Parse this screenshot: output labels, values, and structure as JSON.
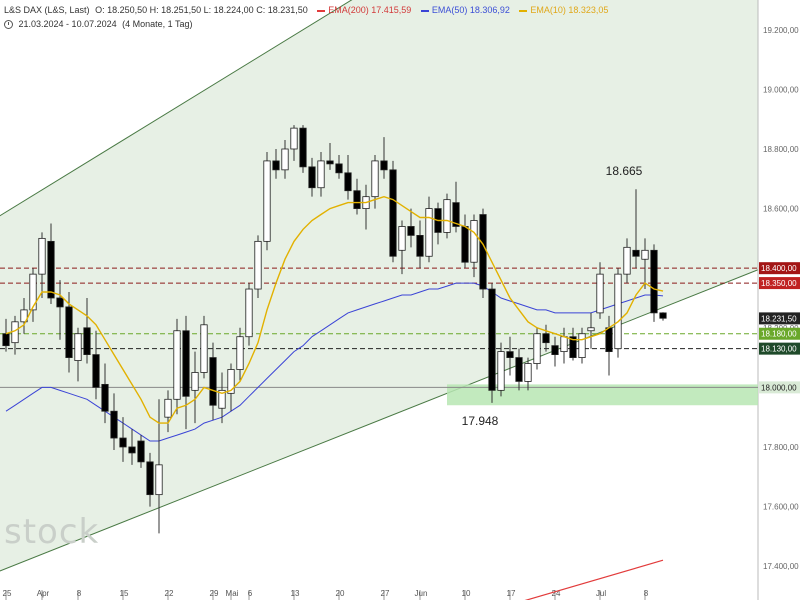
{
  "header": {
    "instrument": "L&S DAX (L&S, Last)",
    "ohlc": "O: 18.250,50  H: 18.251,50  L: 18.224,00  C: 18.231,50",
    "ema200": "EMA(200)  17.415,59",
    "ema50": "EMA(50)  18.306,92",
    "ema10": "EMA(10)  18.323,05",
    "range": "21.03.2024 - 10.07.2024",
    "period": "(4 Monate, 1 Tag)"
  },
  "watermark": "stock",
  "colors": {
    "up": "#ffffff",
    "down": "#000000",
    "ema200": "#e23b3b",
    "ema50": "#3b44d6",
    "ema10": "#e2b100",
    "channel_fill": "#e7f0e5",
    "channel_line": "#4a7a45",
    "support_zone": "#b7e6b3",
    "red_dash": "#8b1a1a",
    "green_dash": "#6aa82a",
    "black_dash": "#222222"
  },
  "chart_data": {
    "type": "candlestick",
    "ylim": [
      17320,
      19300
    ],
    "yticks": [
      "19.200,00",
      "19.000,00",
      "18.800,00",
      "18.600,00",
      "18.400,00",
      "18.200,00",
      "18.000,00",
      "17.800,00",
      "17.600,00",
      "17.400,00"
    ],
    "ytick_values": [
      19200,
      19000,
      18800,
      18600,
      18400,
      18200,
      18000,
      17800,
      17600,
      17400
    ],
    "xticks": [
      {
        "label": "25",
        "i": 0
      },
      {
        "label": "Apr",
        "i": 4
      },
      {
        "label": "8",
        "i": 8
      },
      {
        "label": "15",
        "i": 13
      },
      {
        "label": "22",
        "i": 18
      },
      {
        "label": "29",
        "i": 23
      },
      {
        "label": "Mai",
        "i": 25
      },
      {
        "label": "6",
        "i": 27
      },
      {
        "label": "13",
        "i": 32
      },
      {
        "label": "20",
        "i": 37
      },
      {
        "label": "27",
        "i": 42
      },
      {
        "label": "Jun",
        "i": 46
      },
      {
        "label": "10",
        "i": 51
      },
      {
        "label": "17",
        "i": 56
      },
      {
        "label": "24",
        "i": 61
      },
      {
        "label": "Jul",
        "i": 66
      },
      {
        "label": "8",
        "i": 71
      }
    ],
    "candles": [
      {
        "o": 18180,
        "h": 18230,
        "l": 18120,
        "c": 18140
      },
      {
        "o": 18150,
        "h": 18240,
        "l": 18110,
        "c": 18220
      },
      {
        "o": 18220,
        "h": 18300,
        "l": 18180,
        "c": 18260
      },
      {
        "o": 18260,
        "h": 18400,
        "l": 18220,
        "c": 18380
      },
      {
        "o": 18380,
        "h": 18520,
        "l": 18300,
        "c": 18500
      },
      {
        "o": 18490,
        "h": 18550,
        "l": 18280,
        "c": 18300
      },
      {
        "o": 18300,
        "h": 18360,
        "l": 18160,
        "c": 18270
      },
      {
        "o": 18270,
        "h": 18320,
        "l": 18050,
        "c": 18100
      },
      {
        "o": 18090,
        "h": 18200,
        "l": 18020,
        "c": 18180
      },
      {
        "o": 18200,
        "h": 18300,
        "l": 18080,
        "c": 18110
      },
      {
        "o": 18110,
        "h": 18190,
        "l": 17960,
        "c": 18000
      },
      {
        "o": 18010,
        "h": 18080,
        "l": 17880,
        "c": 17920
      },
      {
        "o": 17920,
        "h": 17980,
        "l": 17790,
        "c": 17830
      },
      {
        "o": 17830,
        "h": 17900,
        "l": 17750,
        "c": 17800
      },
      {
        "o": 17800,
        "h": 17860,
        "l": 17740,
        "c": 17780
      },
      {
        "o": 17820,
        "h": 17840,
        "l": 17730,
        "c": 17750
      },
      {
        "o": 17750,
        "h": 17780,
        "l": 17600,
        "c": 17640
      },
      {
        "o": 17640,
        "h": 17960,
        "l": 17510,
        "c": 17740
      },
      {
        "o": 17900,
        "h": 17990,
        "l": 17850,
        "c": 17960
      },
      {
        "o": 17960,
        "h": 18230,
        "l": 17910,
        "c": 18190
      },
      {
        "o": 18190,
        "h": 18240,
        "l": 17860,
        "c": 17970
      },
      {
        "o": 17990,
        "h": 18120,
        "l": 17880,
        "c": 18050
      },
      {
        "o": 18050,
        "h": 18240,
        "l": 18030,
        "c": 18210
      },
      {
        "o": 18100,
        "h": 18150,
        "l": 17890,
        "c": 17940
      },
      {
        "o": 17930,
        "h": 18050,
        "l": 17880,
        "c": 17990
      },
      {
        "o": 17980,
        "h": 18080,
        "l": 17920,
        "c": 18060
      },
      {
        "o": 18060,
        "h": 18200,
        "l": 18020,
        "c": 18170
      },
      {
        "o": 18170,
        "h": 18350,
        "l": 18140,
        "c": 18330
      },
      {
        "o": 18330,
        "h": 18510,
        "l": 18300,
        "c": 18490
      },
      {
        "o": 18490,
        "h": 18790,
        "l": 18460,
        "c": 18760
      },
      {
        "o": 18760,
        "h": 18800,
        "l": 18700,
        "c": 18730
      },
      {
        "o": 18730,
        "h": 18830,
        "l": 18700,
        "c": 18800
      },
      {
        "o": 18800,
        "h": 18880,
        "l": 18760,
        "c": 18870
      },
      {
        "o": 18870,
        "h": 18880,
        "l": 18720,
        "c": 18740
      },
      {
        "o": 18740,
        "h": 18770,
        "l": 18640,
        "c": 18670
      },
      {
        "o": 18670,
        "h": 18790,
        "l": 18640,
        "c": 18760
      },
      {
        "o": 18760,
        "h": 18820,
        "l": 18730,
        "c": 18750
      },
      {
        "o": 18750,
        "h": 18780,
        "l": 18700,
        "c": 18720
      },
      {
        "o": 18720,
        "h": 18780,
        "l": 18630,
        "c": 18660
      },
      {
        "o": 18660,
        "h": 18700,
        "l": 18580,
        "c": 18600
      },
      {
        "o": 18600,
        "h": 18680,
        "l": 18530,
        "c": 18640
      },
      {
        "o": 18640,
        "h": 18780,
        "l": 18600,
        "c": 18760
      },
      {
        "o": 18760,
        "h": 18840,
        "l": 18700,
        "c": 18730
      },
      {
        "o": 18730,
        "h": 18760,
        "l": 18420,
        "c": 18440
      },
      {
        "o": 18460,
        "h": 18560,
        "l": 18380,
        "c": 18540
      },
      {
        "o": 18540,
        "h": 18600,
        "l": 18470,
        "c": 18510
      },
      {
        "o": 18510,
        "h": 18560,
        "l": 18400,
        "c": 18440
      },
      {
        "o": 18440,
        "h": 18640,
        "l": 18420,
        "c": 18600
      },
      {
        "o": 18600,
        "h": 18620,
        "l": 18480,
        "c": 18520
      },
      {
        "o": 18520,
        "h": 18650,
        "l": 18500,
        "c": 18630
      },
      {
        "o": 18620,
        "h": 18690,
        "l": 18520,
        "c": 18540
      },
      {
        "o": 18540,
        "h": 18580,
        "l": 18400,
        "c": 18420
      },
      {
        "o": 18420,
        "h": 18580,
        "l": 18370,
        "c": 18560
      },
      {
        "o": 18580,
        "h": 18600,
        "l": 18300,
        "c": 18330
      },
      {
        "o": 18330,
        "h": 18350,
        "l": 17948,
        "c": 17990
      },
      {
        "o": 17990,
        "h": 18150,
        "l": 17970,
        "c": 18120
      },
      {
        "o": 18120,
        "h": 18170,
        "l": 18040,
        "c": 18100
      },
      {
        "o": 18100,
        "h": 18130,
        "l": 17990,
        "c": 18020
      },
      {
        "o": 18020,
        "h": 18100,
        "l": 17990,
        "c": 18080
      },
      {
        "o": 18080,
        "h": 18200,
        "l": 18060,
        "c": 18180
      },
      {
        "o": 18180,
        "h": 18210,
        "l": 18120,
        "c": 18150
      },
      {
        "o": 18140,
        "h": 18170,
        "l": 18070,
        "c": 18110
      },
      {
        "o": 18120,
        "h": 18200,
        "l": 18080,
        "c": 18170
      },
      {
        "o": 18170,
        "h": 18200,
        "l": 18090,
        "c": 18100
      },
      {
        "o": 18100,
        "h": 18200,
        "l": 18080,
        "c": 18180
      },
      {
        "o": 18190,
        "h": 18250,
        "l": 18130,
        "c": 18200
      },
      {
        "o": 18250,
        "h": 18420,
        "l": 18230,
        "c": 18380
      },
      {
        "o": 18200,
        "h": 18240,
        "l": 18040,
        "c": 18120
      },
      {
        "o": 18130,
        "h": 18400,
        "l": 18100,
        "c": 18380
      },
      {
        "o": 18380,
        "h": 18500,
        "l": 18350,
        "c": 18470
      },
      {
        "o": 18460,
        "h": 18665,
        "l": 18400,
        "c": 18440
      },
      {
        "o": 18430,
        "h": 18500,
        "l": 18330,
        "c": 18460
      },
      {
        "o": 18460,
        "h": 18480,
        "l": 18220,
        "c": 18250
      },
      {
        "o": 18250,
        "h": 18252,
        "l": 18224,
        "c": 18232
      }
    ],
    "ema10": [
      18180,
      18190,
      18210,
      18270,
      18320,
      18320,
      18310,
      18280,
      18260,
      18240,
      18210,
      18160,
      18110,
      18060,
      18010,
      17960,
      17900,
      17880,
      17880,
      17930,
      17940,
      17960,
      18000,
      17990,
      17980,
      17990,
      18020,
      18080,
      18150,
      18260,
      18350,
      18430,
      18490,
      18530,
      18560,
      18580,
      18600,
      18610,
      18620,
      18620,
      18620,
      18630,
      18640,
      18630,
      18610,
      18590,
      18570,
      18570,
      18560,
      18560,
      18550,
      18540,
      18520,
      18480,
      18420,
      18360,
      18300,
      18260,
      18220,
      18200,
      18190,
      18180,
      18170,
      18160,
      18160,
      18170,
      18180,
      18200,
      18220,
      18250,
      18310,
      18350,
      18330,
      18323
    ],
    "ema50": [
      17920,
      17940,
      17960,
      17980,
      18000,
      18000,
      17990,
      17980,
      17970,
      17960,
      17940,
      17920,
      17900,
      17880,
      17860,
      17840,
      17820,
      17820,
      17830,
      17840,
      17850,
      17860,
      17880,
      17890,
      17900,
      17920,
      17940,
      17970,
      18000,
      18030,
      18060,
      18090,
      18120,
      18140,
      18170,
      18190,
      18210,
      18230,
      18250,
      18260,
      18270,
      18280,
      18290,
      18300,
      18310,
      18310,
      18320,
      18330,
      18330,
      18340,
      18350,
      18350,
      18350,
      18340,
      18320,
      18300,
      18290,
      18280,
      18270,
      18260,
      18260,
      18250,
      18250,
      18250,
      18250,
      18250,
      18260,
      18270,
      18280,
      18290,
      18300,
      18310,
      18310,
      18307
    ],
    "ema200_segment": {
      "start_i": 56,
      "start_v": 17270,
      "end_i": 73,
      "end_v": 17420
    },
    "channel": {
      "upper": {
        "i0": -1,
        "v0": 18570,
        "i1": 74,
        "v1": 19960
      },
      "lower": {
        "i0": -1,
        "v0": 17380,
        "i1": 74,
        "v1": 18280
      }
    },
    "hlines": [
      {
        "value": 18400,
        "label": "18.400,00",
        "color": "#8b1a1a",
        "tagbg": "#a31515"
      },
      {
        "value": 18350,
        "label": "18.350,00",
        "color": "#8b1a1a",
        "tagbg": "#c02222"
      },
      {
        "value": 18180,
        "label": "18.180,00",
        "color": "#6aa82a",
        "tagbg": "#6aa82a"
      },
      {
        "value": 18130,
        "label": "18.130,00",
        "color": "#222222",
        "tagbg": "#1f4a2a"
      },
      {
        "value": 18000,
        "label": "18.000,00",
        "color": "#888888",
        "tagbg": "#2e5a34"
      }
    ],
    "last_price": {
      "value": 18231.5,
      "label": "18.231,50"
    },
    "support_zone": {
      "i0": 49,
      "from": 17940,
      "to": 18010
    },
    "annotations": [
      {
        "text": "18.665",
        "i": 70,
        "value": 18665
      },
      {
        "text": "17.948",
        "i": 54,
        "value": 17948
      }
    ]
  }
}
